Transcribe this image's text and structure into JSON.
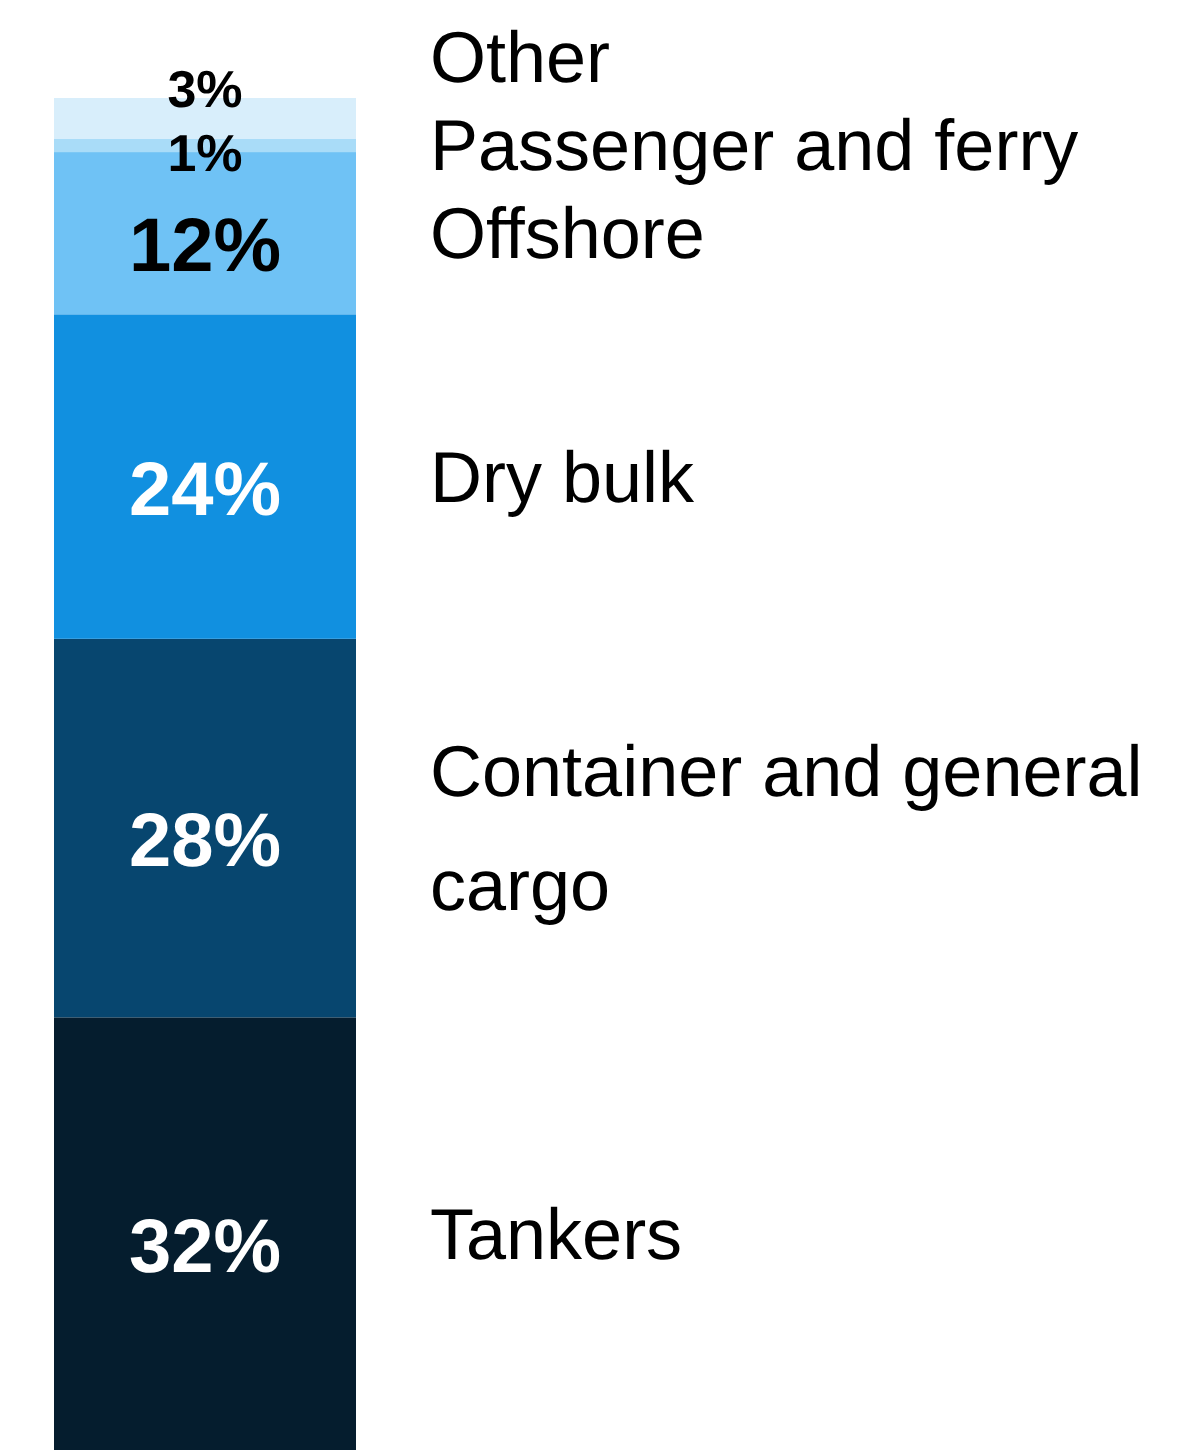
{
  "chart_data": {
    "type": "bar",
    "stacked": true,
    "categories": [
      null
    ],
    "series": [
      {
        "name": "Tankers",
        "color": "#051d2e",
        "values": [
          32
        ],
        "value_labels": [
          "32%"
        ]
      },
      {
        "name": "Container and general cargo",
        "color": "#07466f",
        "values": [
          28
        ],
        "value_labels": [
          "28%"
        ]
      },
      {
        "name": "Dry bulk",
        "color": "#1190e0",
        "values": [
          24
        ],
        "value_labels": [
          "24%"
        ]
      },
      {
        "name": "Offshore",
        "color": "#6fc2f5",
        "values": [
          12
        ],
        "value_labels": [
          "12%"
        ]
      },
      {
        "name": "Passenger and ferry",
        "color": "#a9dcf8",
        "values": [
          1
        ],
        "value_labels": [
          "1%"
        ]
      },
      {
        "name": "Other",
        "color": "#d8eefb",
        "values": [
          3
        ],
        "value_labels": [
          "3%"
        ]
      }
    ]
  }
}
